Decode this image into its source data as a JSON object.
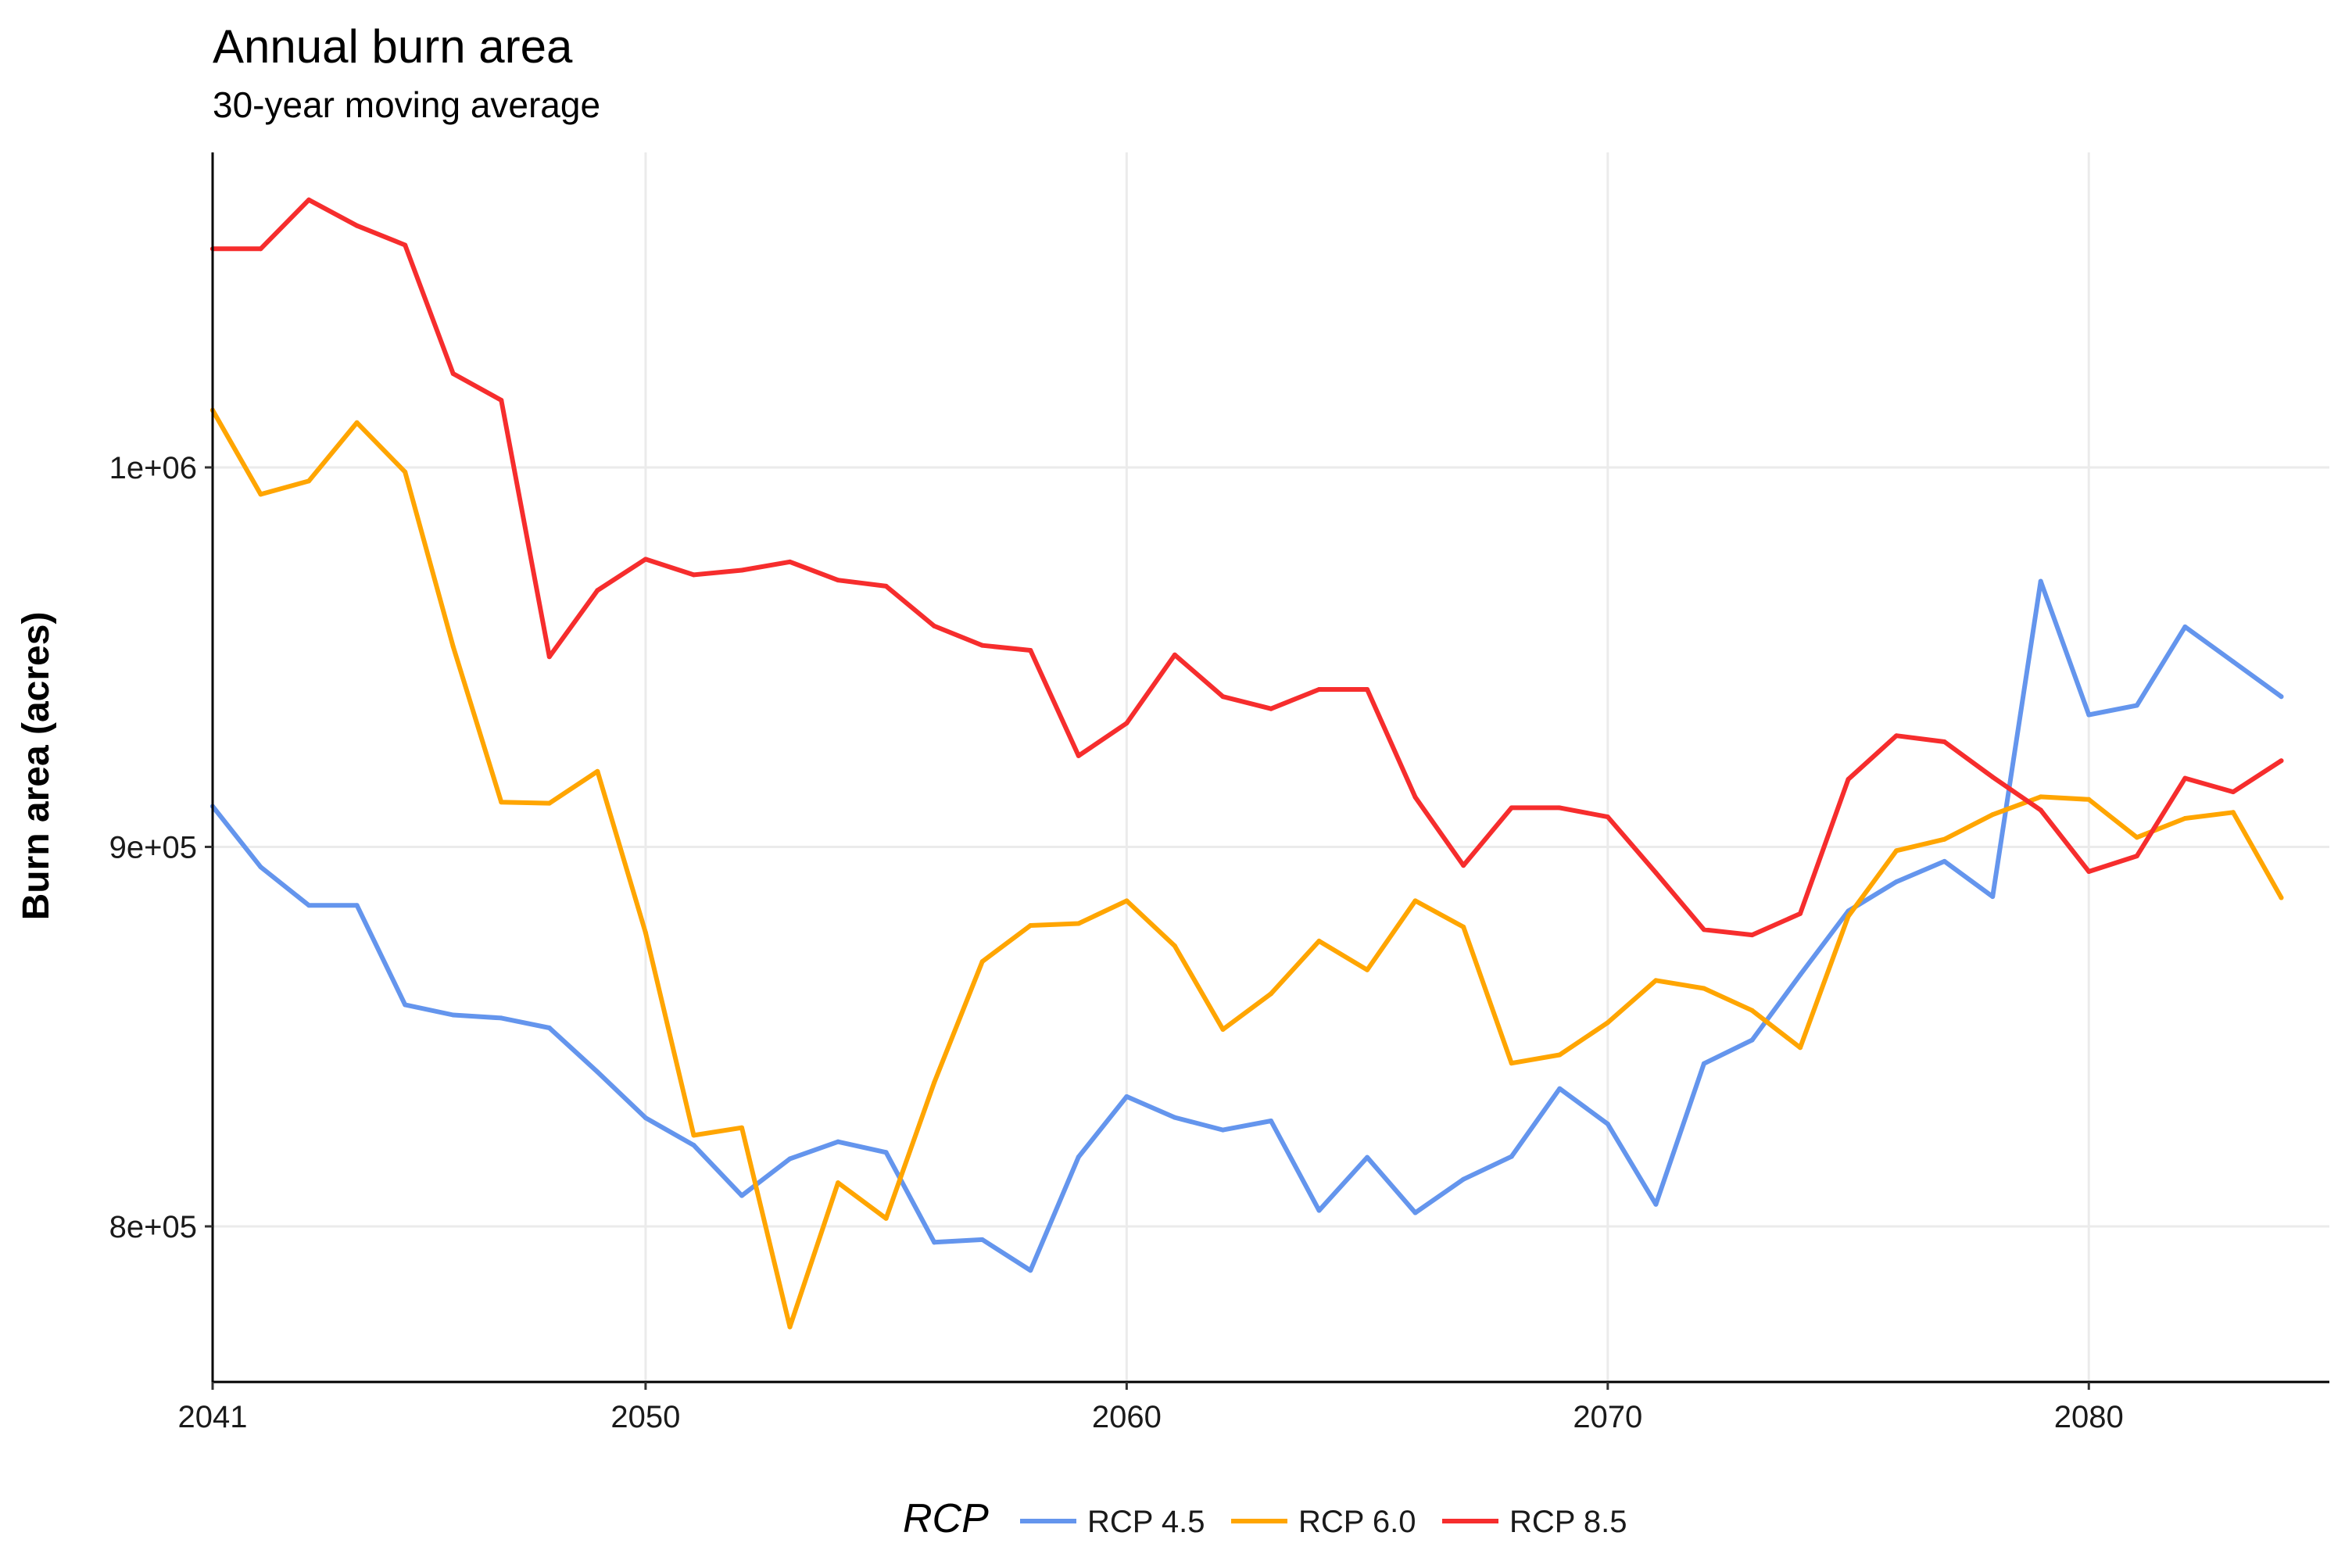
{
  "chart_data": {
    "type": "line",
    "title": "Annual burn area",
    "subtitle": "30-year moving average",
    "xlabel": "",
    "ylabel": "Burn area (acres)",
    "xlim": [
      2041,
      2085
    ],
    "ylim": [
      759000,
      1083000
    ],
    "x_ticks": [
      {
        "value": 2041,
        "label": "2041"
      },
      {
        "value": 2050,
        "label": "2050"
      },
      {
        "value": 2060,
        "label": "2060"
      },
      {
        "value": 2070,
        "label": "2070"
      },
      {
        "value": 2080,
        "label": "2080"
      }
    ],
    "y_ticks": [
      {
        "value": 800000,
        "label": "8e+05"
      },
      {
        "value": 900000,
        "label": "9e+05"
      },
      {
        "value": 1000000,
        "label": "1e+06"
      }
    ],
    "grid": true,
    "legend": {
      "title": "RCP",
      "position": "bottom"
    },
    "x": [
      2041,
      2042,
      2043,
      2044,
      2045,
      2046,
      2047,
      2048,
      2049,
      2050,
      2051,
      2052,
      2053,
      2054,
      2055,
      2056,
      2057,
      2058,
      2059,
      2060,
      2061,
      2062,
      2063,
      2064,
      2065,
      2066,
      2067,
      2068,
      2069,
      2070,
      2071,
      2072,
      2073,
      2074,
      2075,
      2076,
      2077,
      2078,
      2079,
      2080,
      2081,
      2082,
      2083,
      2084
    ],
    "series": [
      {
        "name": "RCP 4.5",
        "color": "#6495ed",
        "values": [
          910700,
          894700,
          884600,
          884600,
          858400,
          855700,
          854900,
          852300,
          840700,
          828600,
          821400,
          808100,
          817800,
          822300,
          819500,
          795800,
          796500,
          788400,
          818300,
          834200,
          828700,
          825400,
          827800,
          804200,
          818200,
          803600,
          812400,
          818400,
          836300,
          827000,
          805800,
          842900,
          849100,
          866300,
          883100,
          890800,
          896200,
          886900,
          970000,
          934800,
          937300,
          958000,
          948800,
          939600
        ]
      },
      {
        "name": "RCP 6.0",
        "color": "#ffa500",
        "values": [
          1015100,
          992900,
          996400,
          1011800,
          998800,
          952800,
          911800,
          911500,
          919900,
          877400,
          824000,
          826000,
          773500,
          811500,
          802100,
          837900,
          869800,
          879300,
          879800,
          885800,
          873900,
          851900,
          861300,
          875200,
          867600,
          885800,
          878900,
          843000,
          845200,
          853700,
          864800,
          862700,
          856900,
          847100,
          881700,
          899000,
          902000,
          908500,
          913200,
          912500,
          902500,
          907500,
          909100,
          886600
        ]
      },
      {
        "name": "RCP 8.5",
        "color": "#f62d2d",
        "values": [
          1057600,
          1057600,
          1070500,
          1063700,
          1058600,
          1024700,
          1017700,
          950100,
          967600,
          975800,
          971700,
          972900,
          975100,
          970300,
          968700,
          958200,
          953100,
          951800,
          924000,
          932600,
          950600,
          939600,
          936400,
          941500,
          941500,
          913100,
          895100,
          910300,
          910300,
          907900,
          893200,
          878200,
          876800,
          882400,
          917800,
          929300,
          927700,
          918400,
          909700,
          893500,
          897600,
          918100,
          914500,
          922700
        ]
      }
    ]
  }
}
